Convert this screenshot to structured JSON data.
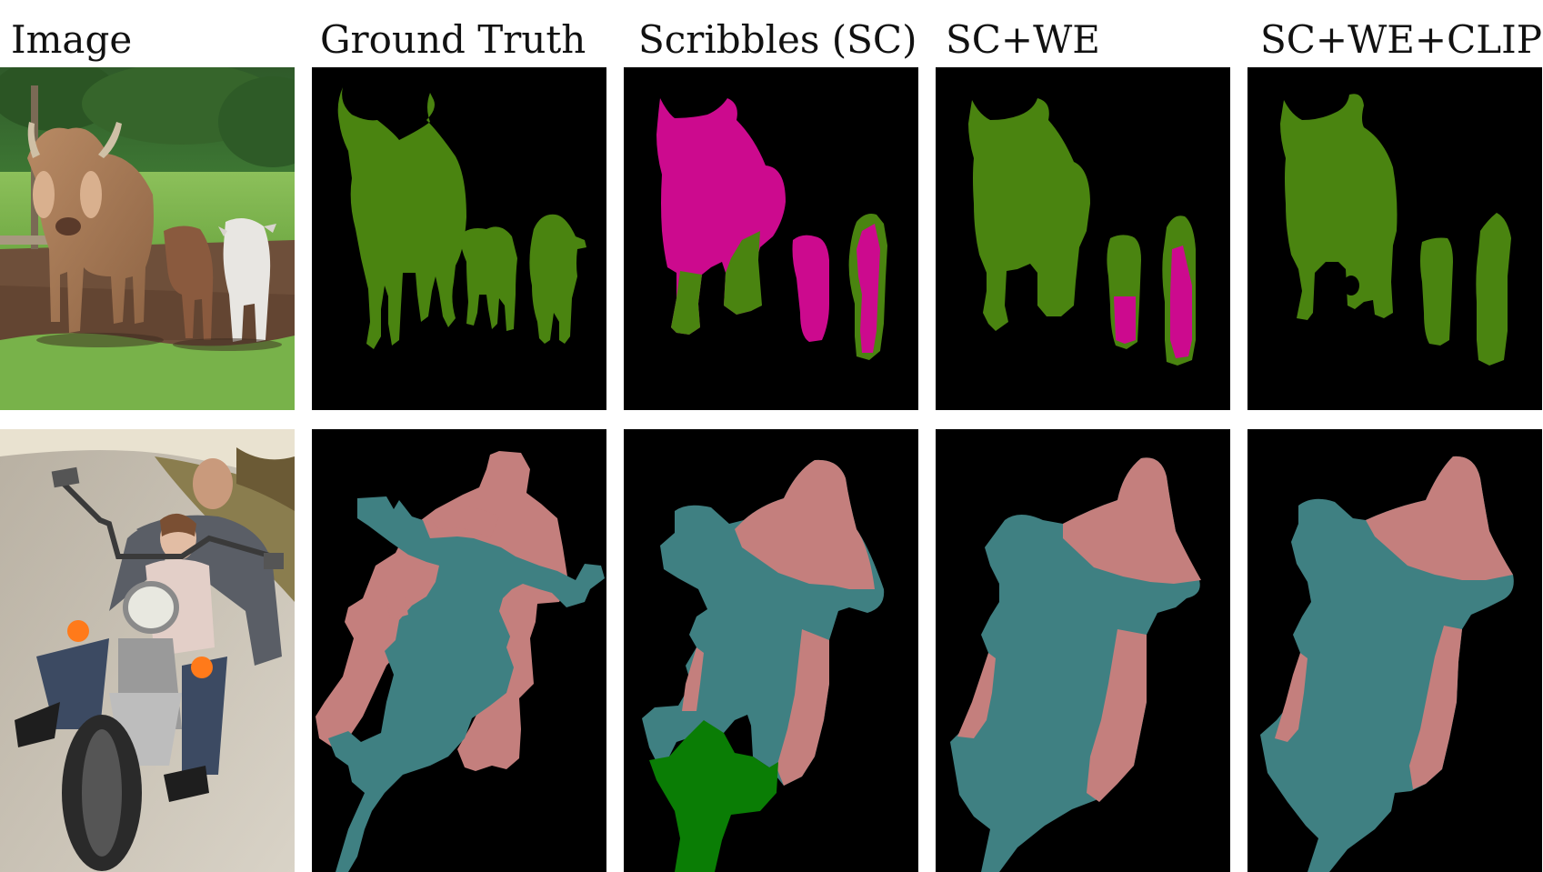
{
  "figure": {
    "columns": [
      {
        "title": "Image"
      },
      {
        "title": "Ground Truth"
      },
      {
        "title": "Scribbles (SC)"
      },
      {
        "title": "SC+WE"
      },
      {
        "title": "SC+WE+CLIP"
      }
    ]
  },
  "colors": {
    "background": "#000000",
    "cow": "#4a8410",
    "scribble_wrong": "#cc0a8e",
    "person": "#c47f7d",
    "motorbike": "#3f8082",
    "scribble_other": "#0a7d05"
  }
}
